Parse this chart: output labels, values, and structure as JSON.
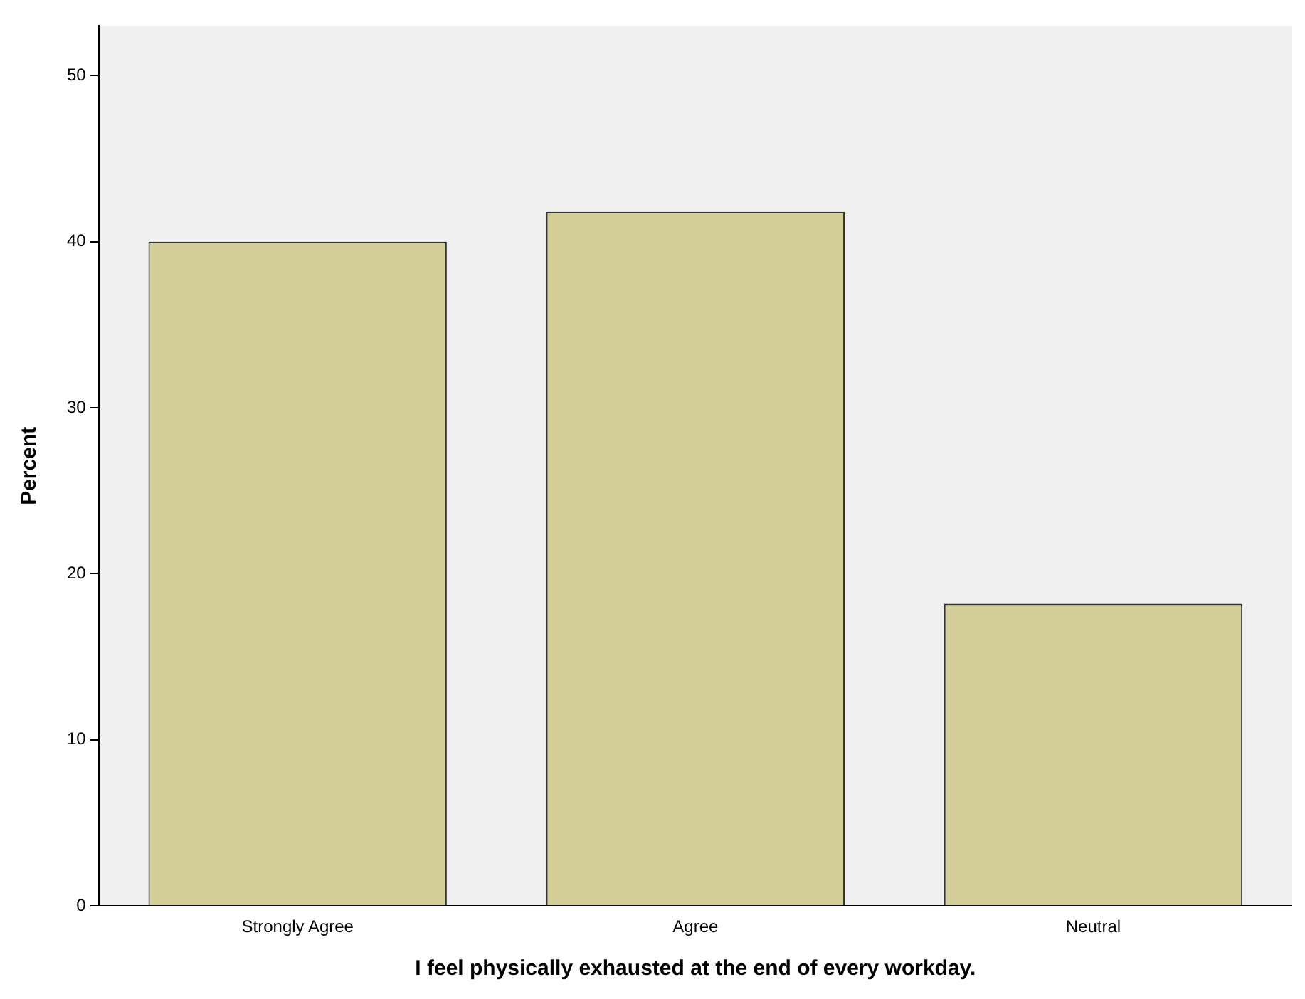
{
  "chart_data": {
    "type": "bar",
    "xlabel": "I feel physically exhausted at the end of every workday.",
    "ylabel": "Percent",
    "categories": [
      "Strongly Agree",
      "Agree",
      "Neutral"
    ],
    "values": [
      40.0,
      41.8,
      18.2
    ],
    "color": "#d3ce97",
    "ylim": [
      0,
      53
    ],
    "yticks": [
      0,
      10,
      20,
      30,
      40,
      50
    ],
    "grid": false,
    "legend": false
  }
}
